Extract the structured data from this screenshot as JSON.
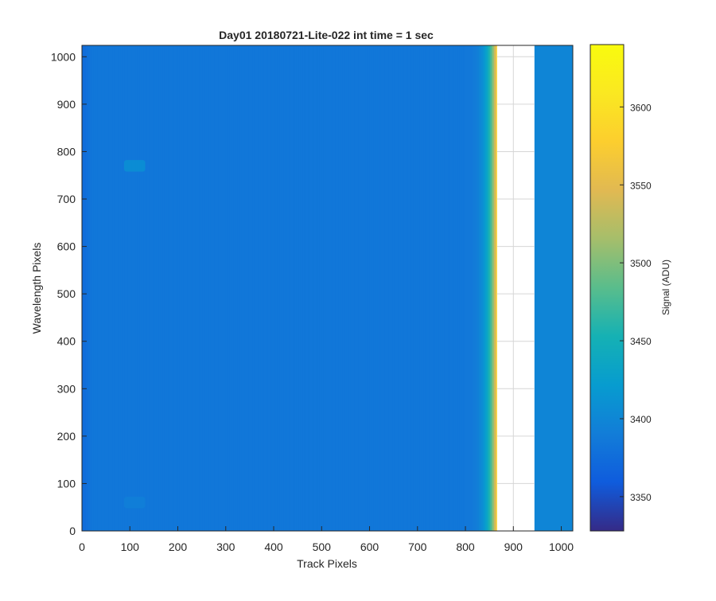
{
  "chart_data": {
    "type": "heatmap",
    "title": "Day01 20180721-Lite-022 int time = 1 sec",
    "xlabel": "Track Pixels",
    "ylabel": "Wavelength Pixels",
    "xlim": [
      0,
      1024
    ],
    "ylim": [
      0,
      1024
    ],
    "xticks": [
      0,
      100,
      200,
      300,
      400,
      500,
      600,
      700,
      800,
      900,
      1000
    ],
    "yticks": [
      0,
      100,
      200,
      300,
      400,
      500,
      600,
      700,
      800,
      900,
      1000
    ],
    "grid": true,
    "colorbar": {
      "label": "Signal (ADU)",
      "colormap": "parula",
      "range": [
        3328,
        3640
      ],
      "ticks": [
        3350,
        3400,
        3450,
        3500,
        3550,
        3600
      ]
    },
    "background_signal": 3385,
    "left_edge_signal": 3372,
    "gradient": {
      "start_x": 780,
      "end_x": 866,
      "peak_signal": 3585
    },
    "blank_region": {
      "x_start": 866,
      "x_end": 944
    },
    "right_region_signal": 3398,
    "hot_spots": [
      {
        "x": 110,
        "y": 770,
        "signal": 3415
      },
      {
        "x": 110,
        "y": 60,
        "signal": 3395
      }
    ]
  }
}
